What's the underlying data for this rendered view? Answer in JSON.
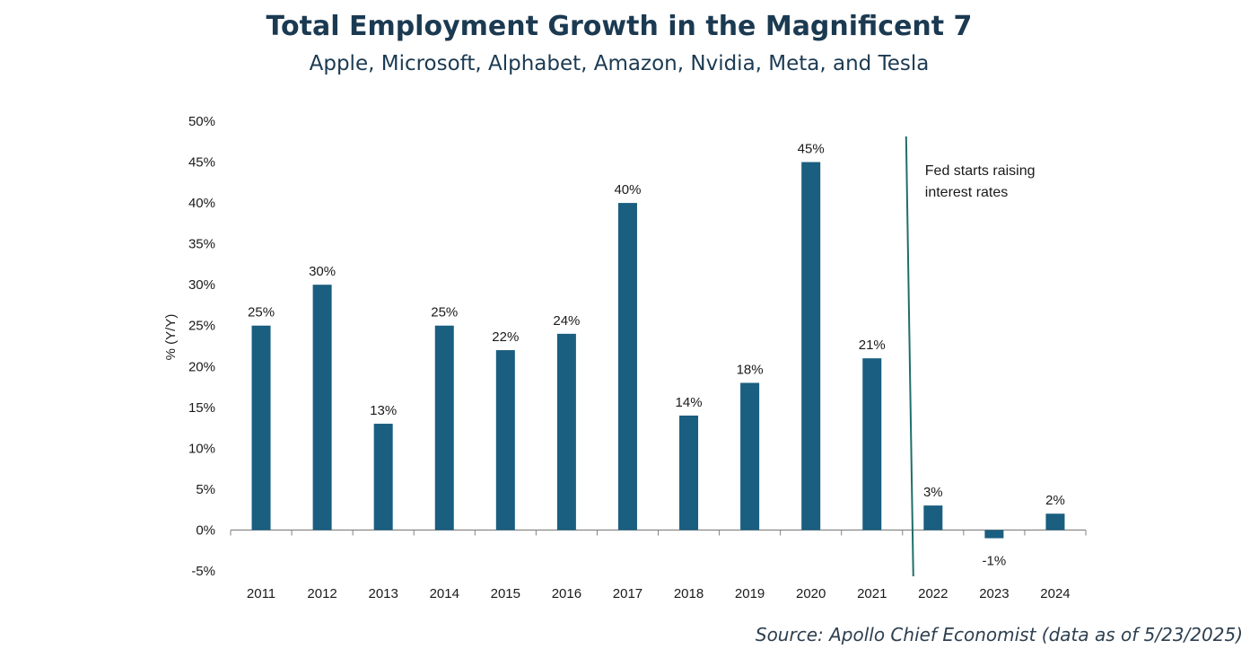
{
  "chart_data": {
    "type": "bar",
    "title": "Total Employment Growth in the Magnificent 7",
    "subtitle": "Apple, Microsoft, Alphabet, Amazon, Nvidia, Meta, and Tesla",
    "ylabel": "% (Y/Y)",
    "xlabel": "",
    "ylim": [
      -5,
      50
    ],
    "ytick_values": [
      -5,
      0,
      5,
      10,
      15,
      20,
      25,
      30,
      35,
      40,
      45,
      50
    ],
    "ytick_labels": [
      "-5%",
      "0%",
      "5%",
      "10%",
      "15%",
      "20%",
      "25%",
      "30%",
      "35%",
      "40%",
      "45%",
      "50%"
    ],
    "categories": [
      "2011",
      "2012",
      "2013",
      "2014",
      "2015",
      "2016",
      "2017",
      "2018",
      "2019",
      "2020",
      "2021",
      "2022",
      "2023",
      "2024"
    ],
    "values": [
      25,
      30,
      13,
      25,
      22,
      24,
      40,
      14,
      18,
      45,
      21,
      3,
      -1,
      2
    ],
    "data_labels": [
      "25%",
      "30%",
      "13%",
      "25%",
      "22%",
      "24%",
      "40%",
      "14%",
      "18%",
      "45%",
      "21%",
      "3%",
      "-1%",
      "2%"
    ],
    "bar_color": "#1a5e80",
    "annotation": {
      "lines": [
        "Fed starts raising",
        "interest rates"
      ],
      "between": [
        "2021",
        "2022"
      ],
      "line_color": "#1f6f6a"
    },
    "grid": false,
    "legend": "none"
  },
  "source": "Source: Apollo Chief Economist (data as of 5/23/2025)"
}
